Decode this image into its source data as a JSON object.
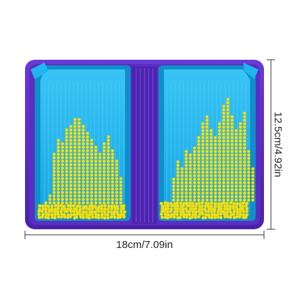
{
  "dimensions": {
    "width_label": "18cm/7.09in",
    "height_label": "12.5cm/4.92in"
  },
  "colors": {
    "tray_frame": "#5b2fc4",
    "tray_frame_dark": "#3e1d94",
    "tray_inner": "#1fb7f0",
    "tray_inner_light": "#6fd6ff",
    "bead": "#f2e21a",
    "bead_shadow": "#c9b800",
    "dimension_line": "#333333"
  }
}
